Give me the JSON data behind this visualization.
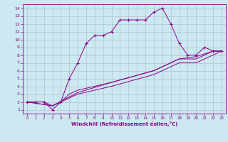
{
  "title": "",
  "xlabel": "Windchill (Refroidissement éolien,°C)",
  "bg_color": "#cce8f0",
  "line_color": "#880088",
  "grid_color": "#aabbcc",
  "xlim": [
    -0.5,
    23.5
  ],
  "ylim": [
    0.5,
    14.5
  ],
  "xticks": [
    0,
    1,
    2,
    3,
    4,
    5,
    6,
    7,
    8,
    9,
    10,
    11,
    12,
    13,
    14,
    15,
    16,
    17,
    18,
    19,
    20,
    21,
    22,
    23
  ],
  "yticks": [
    1,
    2,
    3,
    4,
    5,
    6,
    7,
    8,
    9,
    10,
    11,
    12,
    13,
    14
  ],
  "lines": [
    {
      "x": [
        0,
        1,
        2,
        3,
        4,
        5,
        6,
        7,
        8,
        9,
        10,
        11,
        12,
        13,
        14,
        15,
        16,
        17,
        18,
        19,
        20,
        21,
        22,
        23
      ],
      "y": [
        2,
        2,
        2,
        1,
        2,
        5,
        7,
        9.5,
        10.5,
        10.5,
        11,
        12.5,
        12.5,
        12.5,
        12.5,
        13.5,
        14,
        12,
        9.5,
        8,
        8,
        9,
        8.5,
        8.5
      ],
      "marker": "+",
      "markersize": 3.5
    },
    {
      "x": [
        0,
        1,
        2,
        3,
        4,
        5,
        6,
        10,
        15,
        18,
        20,
        21,
        22,
        23
      ],
      "y": [
        2,
        2,
        2,
        1.5,
        2,
        3,
        3.5,
        4.5,
        6,
        7.5,
        7.5,
        8,
        8.5,
        8.5
      ],
      "marker": null,
      "markersize": 0
    },
    {
      "x": [
        0,
        3,
        6,
        10,
        15,
        18,
        20,
        22,
        23
      ],
      "y": [
        2,
        1.5,
        3.0,
        4.0,
        5.5,
        7.0,
        7.0,
        8.0,
        8.5
      ],
      "marker": null,
      "markersize": 0
    },
    {
      "x": [
        0,
        3,
        6,
        10,
        15,
        18,
        20,
        22,
        23
      ],
      "y": [
        2,
        1.5,
        3.2,
        4.5,
        6.0,
        7.5,
        7.8,
        8.5,
        8.5
      ],
      "marker": null,
      "markersize": 0
    }
  ]
}
